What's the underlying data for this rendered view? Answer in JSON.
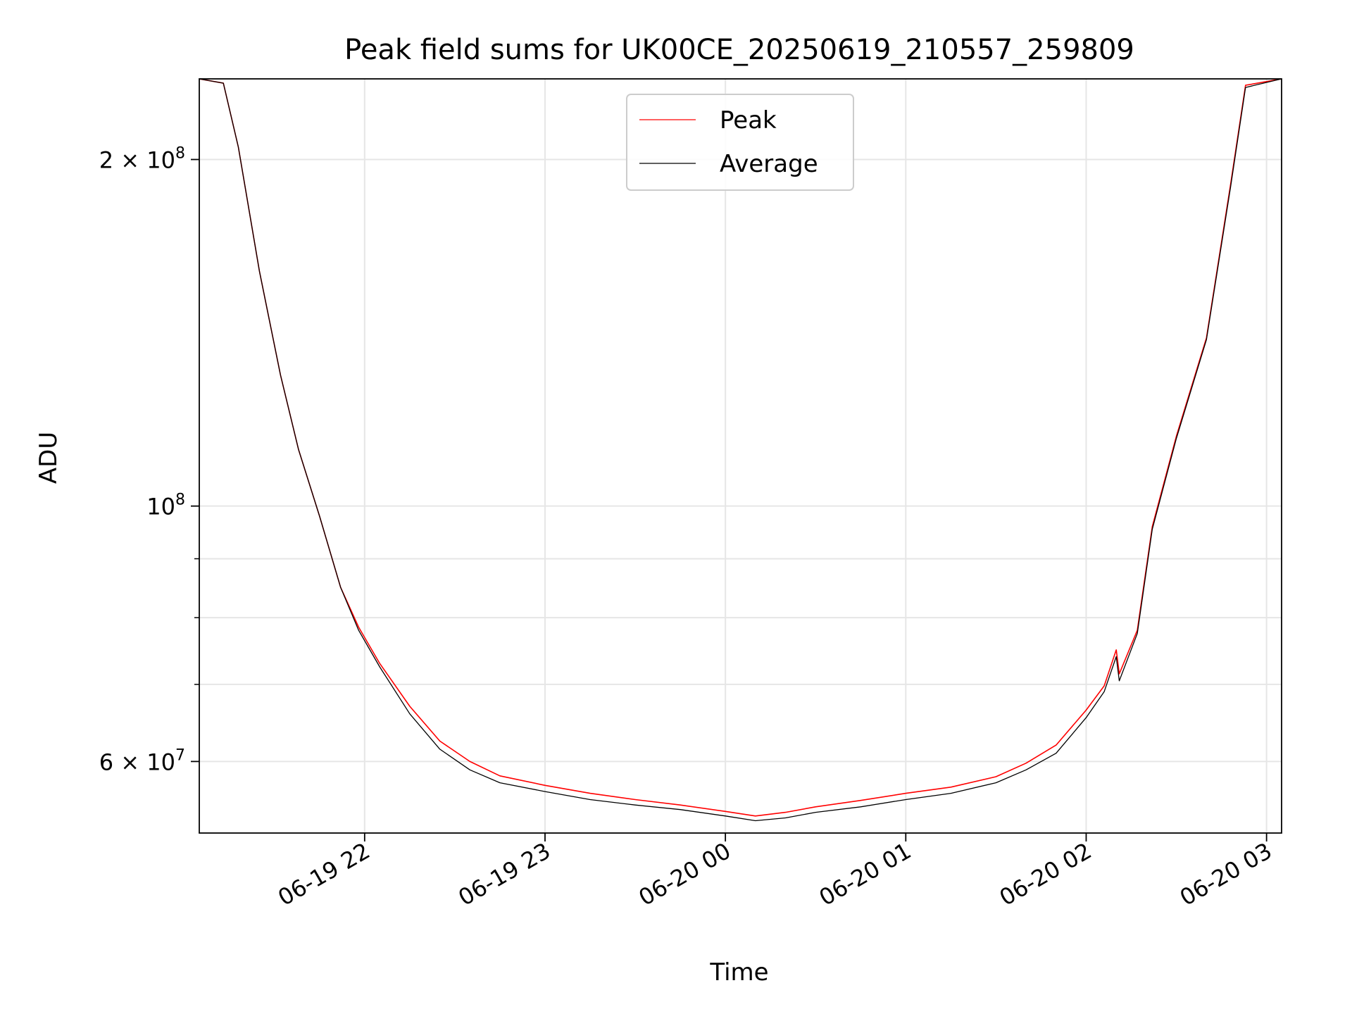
{
  "chart_data": {
    "type": "line",
    "title": "Peak field sums for UK00CE_20250619_210557_259809",
    "xlabel": "Time",
    "ylabel": "ADU",
    "yscale": "log",
    "grid": true,
    "legend_placement": "top-center",
    "xlim": [
      "2025-06-19 21:05",
      "2025-06-20 03:05"
    ],
    "ylim": [
      52000000,
      235000000
    ],
    "x_ticks": [
      {
        "value": "2025-06-19 22:00",
        "label": "06-19 22"
      },
      {
        "value": "2025-06-19 23:00",
        "label": "06-19 23"
      },
      {
        "value": "2025-06-20 00:00",
        "label": "06-20 00"
      },
      {
        "value": "2025-06-20 01:00",
        "label": "06-20 01"
      },
      {
        "value": "2025-06-20 02:00",
        "label": "06-20 02"
      },
      {
        "value": "2025-06-20 03:00",
        "label": "06-20 03"
      }
    ],
    "y_major_ticks": [
      {
        "value": 60000000,
        "base": "6 × 10",
        "exp": "7"
      },
      {
        "value": 100000000,
        "base": "10",
        "exp": "8"
      },
      {
        "value": 200000000,
        "base": "2 × 10",
        "exp": "8"
      }
    ],
    "y_minor_ticks": [
      70000000,
      80000000,
      90000000
    ],
    "series": [
      {
        "name": "Peak",
        "color": "#ff0000",
        "x": [
          "2025-06-19 21:05",
          "2025-06-19 21:13",
          "2025-06-19 21:18",
          "2025-06-19 21:25",
          "2025-06-19 21:32",
          "2025-06-19 21:38",
          "2025-06-19 21:45",
          "2025-06-19 21:52",
          "2025-06-19 21:58",
          "2025-06-19 22:05",
          "2025-06-19 22:15",
          "2025-06-19 22:25",
          "2025-06-19 22:35",
          "2025-06-19 22:45",
          "2025-06-19 23:00",
          "2025-06-19 23:15",
          "2025-06-19 23:30",
          "2025-06-19 23:45",
          "2025-06-20 00:00",
          "2025-06-20 00:10",
          "2025-06-20 00:20",
          "2025-06-20 00:30",
          "2025-06-20 00:45",
          "2025-06-20 01:00",
          "2025-06-20 01:15",
          "2025-06-20 01:30",
          "2025-06-20 01:40",
          "2025-06-20 01:50",
          "2025-06-20 02:00",
          "2025-06-20 02:06",
          "2025-06-20 02:10",
          "2025-06-20 02:11",
          "2025-06-20 02:17",
          "2025-06-20 02:22",
          "2025-06-20 02:30",
          "2025-06-20 02:40",
          "2025-06-20 02:48",
          "2025-06-20 02:53",
          "2025-06-20 03:05"
        ],
        "values": [
          235000000,
          233000000,
          205000000,
          160000000,
          130000000,
          112000000,
          98000000,
          85000000,
          78500000,
          73000000,
          67000000,
          62500000,
          60000000,
          58300000,
          57200000,
          56300000,
          55600000,
          55000000,
          54300000,
          53800000,
          54200000,
          54800000,
          55500000,
          56300000,
          57000000,
          58200000,
          59800000,
          62000000,
          66500000,
          69800000,
          75000000,
          71500000,
          78000000,
          96000000,
          115000000,
          140000000,
          190000000,
          232000000,
          235000000
        ]
      },
      {
        "name": "Average",
        "color": "#000000",
        "x": [
          "2025-06-19 21:05",
          "2025-06-19 21:13",
          "2025-06-19 21:18",
          "2025-06-19 21:25",
          "2025-06-19 21:32",
          "2025-06-19 21:38",
          "2025-06-19 21:45",
          "2025-06-19 21:52",
          "2025-06-19 21:58",
          "2025-06-19 22:05",
          "2025-06-19 22:15",
          "2025-06-19 22:25",
          "2025-06-19 22:35",
          "2025-06-19 22:45",
          "2025-06-19 23:00",
          "2025-06-19 23:15",
          "2025-06-19 23:30",
          "2025-06-19 23:45",
          "2025-06-20 00:00",
          "2025-06-20 00:10",
          "2025-06-20 00:20",
          "2025-06-20 00:30",
          "2025-06-20 00:45",
          "2025-06-20 01:00",
          "2025-06-20 01:15",
          "2025-06-20 01:30",
          "2025-06-20 01:40",
          "2025-06-20 01:50",
          "2025-06-20 02:00",
          "2025-06-20 02:06",
          "2025-06-20 02:10",
          "2025-06-20 02:11",
          "2025-06-20 02:17",
          "2025-06-20 02:22",
          "2025-06-20 02:30",
          "2025-06-20 02:40",
          "2025-06-20 02:48",
          "2025-06-20 02:53",
          "2025-06-20 03:05"
        ],
        "values": [
          235000000,
          233000000,
          205000000,
          160000000,
          130000000,
          112000000,
          98000000,
          85000000,
          78000000,
          72500000,
          66000000,
          61500000,
          59000000,
          57500000,
          56500000,
          55600000,
          55000000,
          54500000,
          53800000,
          53300000,
          53600000,
          54200000,
          54800000,
          55600000,
          56300000,
          57500000,
          59000000,
          61000000,
          65500000,
          69000000,
          74000000,
          70500000,
          77500000,
          95500000,
          114500000,
          139500000,
          189000000,
          231000000,
          235000000
        ]
      }
    ]
  }
}
